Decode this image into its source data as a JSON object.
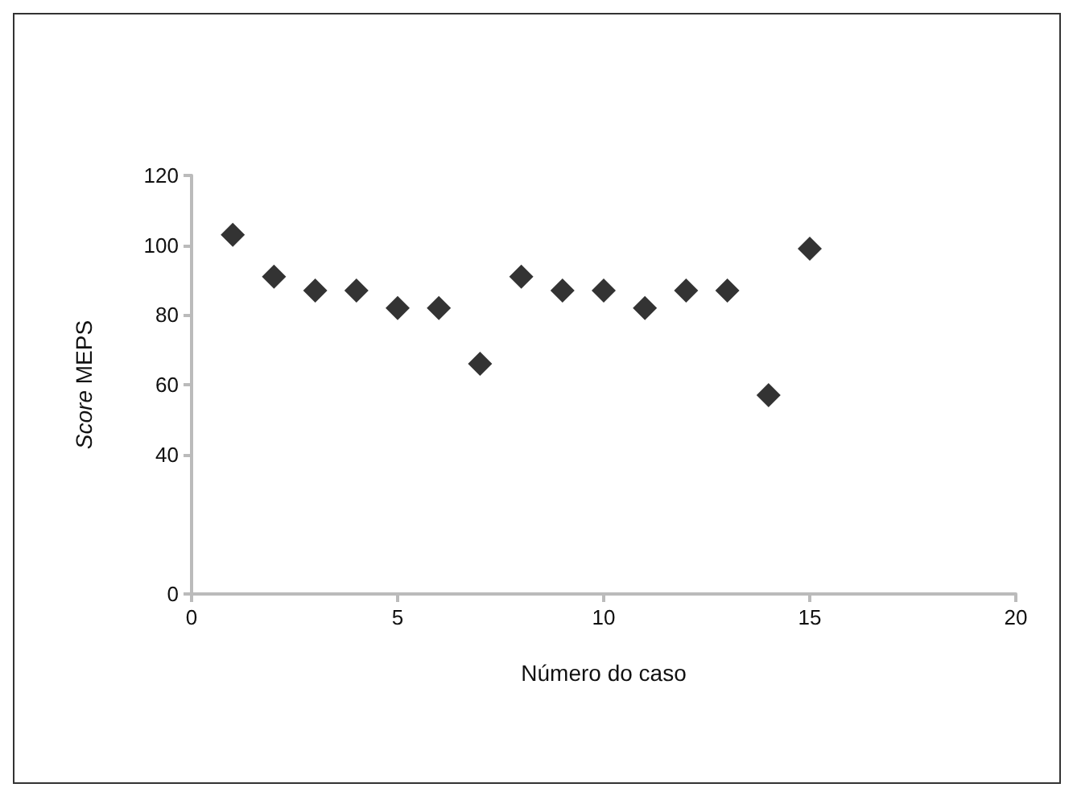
{
  "chart_data": {
    "type": "scatter",
    "xlabel": "Número do caso",
    "ylabel": "Score MEPS",
    "x": [
      1,
      2,
      3,
      4,
      5,
      6,
      7,
      8,
      9,
      10,
      11,
      12,
      13,
      14,
      15
    ],
    "series": [
      {
        "color": "#000000",
        "values": [
          103,
          91,
          87,
          87,
          82,
          82,
          66,
          91,
          87,
          87,
          82,
          87,
          87,
          57,
          99
        ]
      }
    ],
    "xlim": [
      0,
      20
    ],
    "xticks": [
      0,
      5,
      10,
      15,
      20
    ],
    "ylim": [
      0,
      120
    ],
    "yticks": [
      0,
      40,
      60,
      80,
      100,
      120
    ],
    "marker": "diamond",
    "grid": false
  }
}
